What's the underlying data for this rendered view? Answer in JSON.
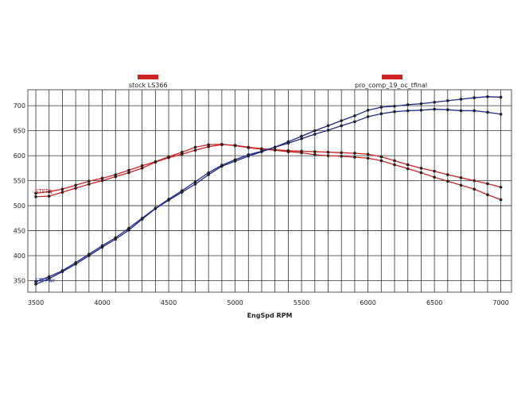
{
  "chart_data": {
    "type": "line",
    "title": "",
    "xlabel": "EngSpd  RPM",
    "ylabel": "",
    "xlim": [
      3440,
      7080
    ],
    "ylim": [
      327,
      732
    ],
    "x_ticks": [
      3500,
      4000,
      4500,
      5000,
      5500,
      6000,
      6500,
      7000
    ],
    "y_ticks": [
      350,
      400,
      450,
      500,
      550,
      600,
      650,
      700
    ],
    "x_grid_step": 100,
    "grid": true,
    "legend_position": "top",
    "legend": [
      {
        "name": "stock LS366",
        "color": "#cc2222"
      },
      {
        "name": "pro_comp_19_oc_tfinal",
        "color": "#cc2222"
      }
    ],
    "series_labels": [
      {
        "text": "STFTq",
        "color": "#cc2222",
        "x": 3500,
        "y": 530
      },
      {
        "text": "STFPwr",
        "color": "#2233aa",
        "x": 3500,
        "y": 352
      }
    ],
    "x": [
      3500,
      3600,
      3700,
      3800,
      3900,
      4000,
      4100,
      4200,
      4300,
      4400,
      4500,
      4600,
      4700,
      4800,
      4900,
      5000,
      5100,
      5200,
      5300,
      5400,
      5500,
      5600,
      5700,
      5800,
      5900,
      6000,
      6100,
      6200,
      6300,
      6400,
      6500,
      6600,
      6700,
      6800,
      6900,
      7000
    ],
    "series": [
      {
        "group": "torque",
        "color": "#cc2222",
        "values": [
          518,
          519,
          527,
          535,
          543,
          550,
          558,
          566,
          575,
          587,
          596,
          603,
          611,
          618,
          622,
          621,
          617,
          614,
          612,
          610,
          609,
          608,
          607,
          606,
          605,
          603,
          598,
          590,
          582,
          575,
          569,
          562,
          556,
          550,
          544,
          537
        ]
      },
      {
        "group": "torque",
        "color": "#cc2222",
        "values": [
          525,
          528,
          533,
          541,
          549,
          555,
          562,
          571,
          580,
          588,
          598,
          607,
          617,
          622,
          623,
          620,
          616,
          613,
          611,
          608,
          606,
          602,
          600,
          599,
          597,
          595,
          590,
          582,
          574,
          566,
          557,
          549,
          541,
          533,
          522,
          512
        ]
      },
      {
        "group": "power",
        "color": "#1e2a88",
        "values": [
          348,
          358,
          370,
          386,
          403,
          420,
          436,
          455,
          475,
          495,
          513,
          530,
          548,
          566,
          581,
          592,
          602,
          609,
          617,
          625,
          634,
          643,
          651,
          660,
          668,
          678,
          684,
          688,
          690,
          691,
          693,
          692,
          690,
          690,
          687,
          683
        ]
      },
      {
        "group": "power",
        "color": "#1e2a88",
        "values": [
          343,
          354,
          368,
          383,
          400,
          417,
          433,
          451,
          473,
          494,
          511,
          527,
          543,
          562,
          579,
          589,
          599,
          608,
          617,
          628,
          639,
          650,
          660,
          670,
          680,
          691,
          697,
          699,
          702,
          704,
          707,
          710,
          713,
          716,
          718,
          717
        ]
      }
    ]
  }
}
